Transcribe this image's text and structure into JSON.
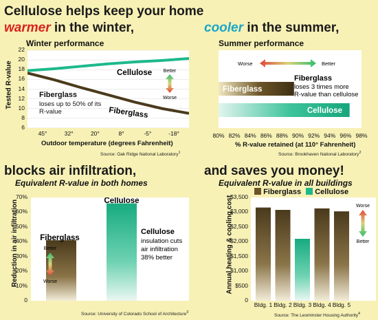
{
  "headlines": {
    "h1": "Cellulose helps keep your home",
    "warmer": "warmer",
    "winter_rest": "in the winter,",
    "cooler": "cooler",
    "summer_rest": "in the summer,",
    "air": "blocks air infiltration,",
    "money": "and saves you money!"
  },
  "colors": {
    "page_bg": "#f7f1b6",
    "cellulose": "#1db98c",
    "fiberglass": "#4a3a1c",
    "warm_red": "#d8241c",
    "cool_blue": "#1aa7c9"
  },
  "chart_data": [
    {
      "type": "line",
      "title": "Winter performance",
      "xlabel": "Outdoor temperature (degrees Fahrenheit)",
      "ylabel": "Tested R-value",
      "x_ticks": [
        "45°",
        "32°",
        "20°",
        "8°",
        "-5°",
        "-18°"
      ],
      "y_ticks": [
        6,
        8,
        10,
        12,
        14,
        16,
        18,
        20,
        22
      ],
      "ylim": [
        6,
        22
      ],
      "series": [
        {
          "name": "Cellulose",
          "values": [
            17.8,
            18.2,
            18.7,
            19.2,
            19.6,
            19.9,
            20.3
          ]
        },
        {
          "name": "Fiberglass",
          "values": [
            17.3,
            15.9,
            14.3,
            12.8,
            11.3,
            10.0,
            9.0
          ]
        }
      ],
      "annotations": {
        "series1": "Cellulose",
        "series2": "Fiberglass",
        "note": "Fiberglass loses up to 50% of its R-value",
        "better": "Better",
        "worse": "Worse"
      },
      "source": "Source: Oak Ridge National Laboratory",
      "source_ref": "1"
    },
    {
      "type": "bar",
      "orientation": "horizontal",
      "title": "Summer performance",
      "xlabel": "% R-value retained (at 110° Fahrenheit)",
      "x_ticks": [
        "80%",
        "82%",
        "84%",
        "86%",
        "88%",
        "90%",
        "92%",
        "94%",
        "96%",
        "98%"
      ],
      "xlim": [
        80,
        98
      ],
      "categories": [
        "Fiberglass",
        "Cellulose"
      ],
      "values": [
        89.5,
        96.5
      ],
      "annotations": {
        "worse": "Worse",
        "better": "Better",
        "note_title": "Fiberglass",
        "note": "loses 3 times more R-value than cellulose"
      },
      "source": "Source: Brookhaven National Laboratory",
      "source_ref": "2"
    },
    {
      "type": "bar",
      "title": "Equivalent R-value in both homes",
      "ylabel": "Reduction in air infiltration",
      "y_ticks": [
        "0",
        "10%",
        "20%",
        "30%",
        "40%",
        "50%",
        "60%",
        "70%"
      ],
      "ylim": [
        0,
        70
      ],
      "categories": [
        "Fiberglass",
        "Cellulose"
      ],
      "values": [
        41,
        66
      ],
      "annotations": {
        "note_title": "Cellulose",
        "note": "insulation cuts air infiltration 38% better",
        "better": "Better",
        "worse": "Worse"
      },
      "source": "Source: University of Colorado School of Architecture",
      "source_ref": "3"
    },
    {
      "type": "bar",
      "title": "Equivalent R-value in all buildings",
      "ylabel": "Annual heating & cooling cost",
      "y_ticks": [
        "0",
        "$500",
        "$1,000",
        "$1,500",
        "$2,000",
        "$2,500",
        "$3,000",
        "$3,500"
      ],
      "ylim": [
        0,
        3500
      ],
      "legend": [
        "Fiberglass",
        "Cellulose"
      ],
      "categories": [
        "Bldg. 1",
        "Bldg. 2",
        "Bldg. 3",
        "Bldg. 4",
        "Bldg. 5"
      ],
      "bar_types": [
        "Fiberglass",
        "Fiberglass",
        "Cellulose",
        "Fiberglass",
        "Fiberglass"
      ],
      "values": [
        3160,
        3080,
        2100,
        3130,
        3030
      ],
      "annotations": {
        "worse": "Worse",
        "better": "Better"
      },
      "source": "Source: The Leominster Housing Authority",
      "source_ref": "4"
    }
  ]
}
